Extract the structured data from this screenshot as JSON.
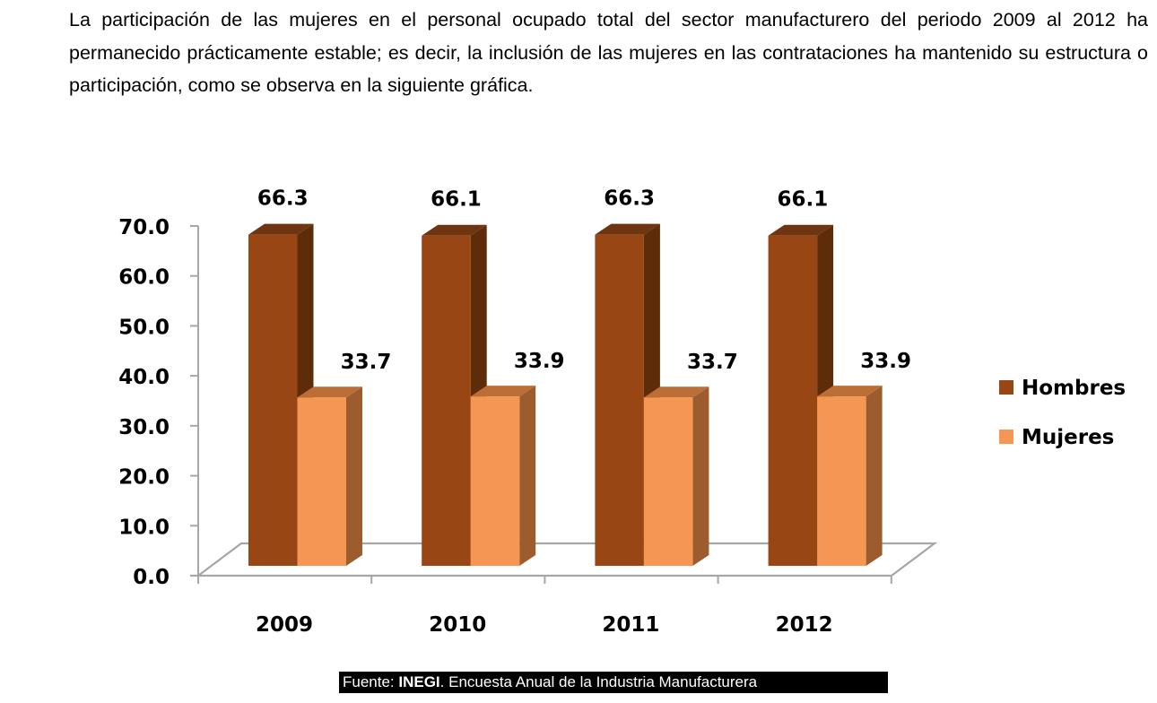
{
  "paragraph": "La participación de las mujeres en el personal ocupado total del sector manufacturero del periodo 2009 al 2012 ha permanecido prácticamente estable; es decir, la inclusión de las mujeres en las contrataciones ha mantenido su estructura o participación, como se observa en la siguiente gráfica.",
  "source": {
    "prefix": "Fuente: ",
    "org": "INEGI",
    "rest": ". Encuesta Anual de la Industria Manufacturera"
  },
  "chart_data": {
    "type": "bar",
    "style": "3d-clustered-column",
    "title": "",
    "xlabel": "",
    "ylabel": "",
    "categories": [
      "2009",
      "2010",
      "2011",
      "2012"
    ],
    "series": [
      {
        "name": "Hombres",
        "values": [
          66.3,
          66.1,
          66.3,
          66.1
        ],
        "color": "#974614",
        "side_color": "#5e2c08",
        "top_color": "#6f3510"
      },
      {
        "name": "Mujeres",
        "values": [
          33.7,
          33.9,
          33.7,
          33.9
        ],
        "color": "#f59752",
        "side_color": "#9c5c2e",
        "top_color": "#bb6e36"
      }
    ],
    "data_labels": [
      [
        "66.3",
        "66.1",
        "66.3",
        "66.1"
      ],
      [
        "33.7",
        "33.9",
        "33.7",
        "33.9"
      ]
    ],
    "ylim": [
      0,
      70
    ],
    "yticks": [
      0,
      10,
      20,
      30,
      40,
      50,
      60,
      70
    ],
    "ytick_labels": [
      "0.0",
      "10.0",
      "20.0",
      "30.0",
      "40.0",
      "50.0",
      "60.0",
      "70.0"
    ],
    "grid": false,
    "legend": "right",
    "axis_color": "#a6a6a6"
  }
}
